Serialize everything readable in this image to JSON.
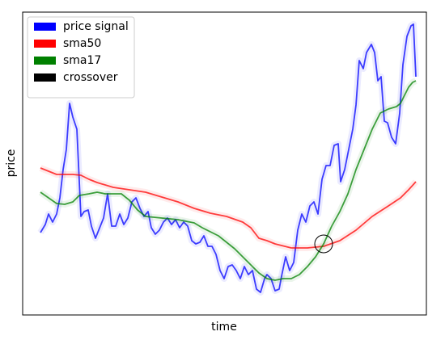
{
  "chart_data": {
    "type": "line",
    "xlabel": "time",
    "ylabel": "price",
    "xlim": [
      -22,
      477
    ],
    "ylim": [
      0,
      375
    ],
    "legend": "upper left",
    "series": [
      {
        "name": "price signal",
        "color": "#0000ff",
        "x": [
          0,
          6,
          10,
          15,
          20,
          24,
          28,
          32,
          36,
          40,
          45,
          50,
          54,
          59,
          63,
          68,
          72,
          78,
          83,
          88,
          93,
          98,
          103,
          108,
          113,
          118,
          123,
          128,
          133,
          137,
          142,
          147,
          152,
          157,
          162,
          167,
          172,
          177,
          182,
          187,
          192,
          197,
          202,
          207,
          212,
          217,
          222,
          227,
          232,
          237,
          242,
          247,
          252,
          257,
          262,
          267,
          272,
          277,
          280,
          285,
          290,
          295,
          298,
          303,
          308,
          313,
          318,
          323,
          328,
          333,
          338,
          343,
          348,
          353,
          358,
          363,
          368,
          371,
          376,
          381,
          386,
          390,
          394,
          399,
          403,
          409,
          413,
          417,
          421,
          425,
          429,
          434,
          439,
          444,
          448,
          453,
          458,
          461,
          464
        ],
        "values": [
          102,
          112,
          125,
          115,
          125,
          145,
          180,
          205,
          262,
          245,
          230,
          122,
          128,
          130,
          110,
          95,
          105,
          120,
          150,
          110,
          110,
          125,
          112,
          120,
          140,
          145,
          132,
          122,
          128,
          108,
          100,
          105,
          115,
          120,
          112,
          118,
          108,
          115,
          110,
          92,
          88,
          90,
          98,
          85,
          85,
          75,
          55,
          45,
          60,
          62,
          55,
          45,
          60,
          50,
          55,
          32,
          28,
          45,
          50,
          45,
          30,
          32,
          48,
          72,
          55,
          65,
          105,
          125,
          115,
          135,
          140,
          125,
          168,
          185,
          185,
          210,
          212,
          165,
          180,
          205,
          230,
          260,
          315,
          305,
          325,
          335,
          325,
          290,
          295,
          240,
          238,
          220,
          212,
          250,
          310,
          345,
          358,
          360,
          295
        ]
      },
      {
        "name": "sma50",
        "color": "#ff0000",
        "x": [
          0,
          10,
          20,
          40,
          50,
          60,
          70,
          90,
          110,
          130,
          150,
          170,
          190,
          210,
          230,
          250,
          260,
          270,
          280,
          290,
          310,
          330,
          350,
          370,
          390,
          410,
          430,
          445,
          455,
          464
        ],
        "values": [
          182,
          178,
          174,
          174,
          173,
          168,
          164,
          158,
          155,
          152,
          146,
          140,
          132,
          126,
          122,
          115,
          108,
          95,
          92,
          88,
          83,
          83,
          85,
          92,
          105,
          122,
          135,
          145,
          155,
          165
        ]
      },
      {
        "name": "sma17",
        "color": "#008000",
        "x": [
          0,
          10,
          20,
          30,
          40,
          48,
          60,
          70,
          80,
          100,
          110,
          120,
          130,
          150,
          170,
          190,
          200,
          220,
          240,
          260,
          270,
          280,
          290,
          300,
          310,
          320,
          330,
          340,
          350,
          360,
          370,
          380,
          390,
          400,
          410,
          420,
          430,
          440,
          445,
          450,
          455,
          460,
          464
        ],
        "values": [
          152,
          145,
          138,
          137,
          140,
          148,
          150,
          152,
          150,
          150,
          142,
          130,
          122,
          120,
          118,
          114,
          108,
          98,
          82,
          62,
          52,
          45,
          43,
          45,
          45,
          50,
          60,
          72,
          88,
          110,
          128,
          150,
          180,
          205,
          230,
          250,
          255,
          258,
          262,
          272,
          282,
          288,
          290
        ]
      }
    ],
    "markers": [
      {
        "name": "crossover",
        "color": "#000000",
        "x": 350,
        "y": 88
      }
    ]
  }
}
